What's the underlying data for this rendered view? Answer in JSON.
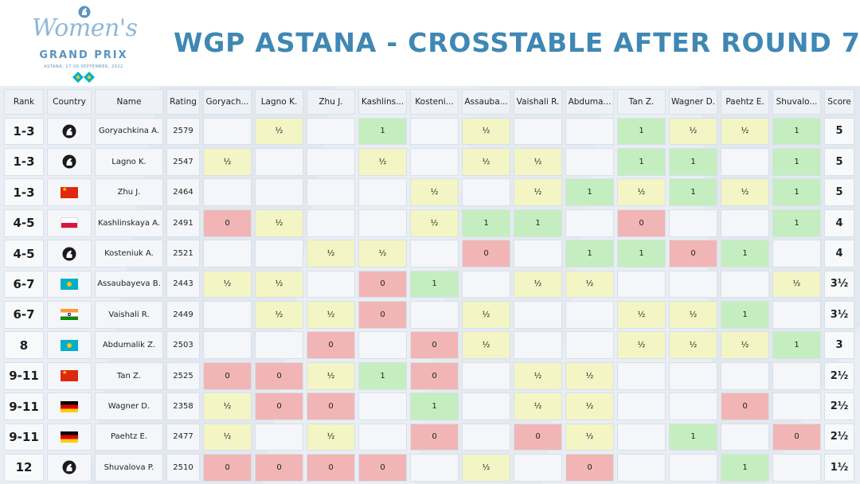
{
  "logo": {
    "script_text": "Women's",
    "grand_prix": "GRAND PRIX",
    "subtitle": "ASTANA, 17-30 SEPTEMBER, 2022"
  },
  "title": "WGP ASTANA - CROSSTABLE AFTER ROUND 7",
  "headers": {
    "rank": "Rank",
    "country": "Country",
    "name": "Name",
    "rating": "Rating",
    "opponents": [
      "Goryach...",
      "Lagno K.",
      "Zhu J.",
      "Kashlins...",
      "Kosteni...",
      "Assauba...",
      "Vaishali R.",
      "Abduma...",
      "Tan Z.",
      "Wagner D.",
      "Paehtz E.",
      "Shuvalo..."
    ],
    "score": "Score"
  },
  "colors": {
    "title": "#3f88b3",
    "win": "#c5eec0",
    "draw": "#f3f5c4",
    "loss": "#f2b5b5"
  },
  "rows": [
    {
      "rank": "1-3",
      "country": "fide",
      "name": "Goryachkina A.",
      "rating": "2579",
      "results": [
        "",
        "½",
        "",
        "1",
        "",
        "½",
        "",
        "",
        "1",
        "½",
        "½",
        "1"
      ],
      "score": "5"
    },
    {
      "rank": "1-3",
      "country": "fide",
      "name": "Lagno K.",
      "rating": "2547",
      "results": [
        "½",
        "",
        "",
        "½",
        "",
        "½",
        "½",
        "",
        "1",
        "1",
        "",
        "1"
      ],
      "score": "5"
    },
    {
      "rank": "1-3",
      "country": "china",
      "name": "Zhu J.",
      "rating": "2464",
      "results": [
        "",
        "",
        "",
        "",
        "½",
        "",
        "½",
        "1",
        "½",
        "1",
        "½",
        "1"
      ],
      "score": "5"
    },
    {
      "rank": "4-5",
      "country": "poland",
      "name": "Kashlinskaya A.",
      "rating": "2491",
      "results": [
        "0",
        "½",
        "",
        "",
        "½",
        "1",
        "1",
        "",
        "0",
        "",
        "",
        "1"
      ],
      "score": "4"
    },
    {
      "rank": "4-5",
      "country": "fide",
      "name": "Kosteniuk A.",
      "rating": "2521",
      "results": [
        "",
        "",
        "½",
        "½",
        "",
        "0",
        "",
        "1",
        "1",
        "0",
        "1",
        ""
      ],
      "score": "4"
    },
    {
      "rank": "6-7",
      "country": "kazakhstan",
      "name": "Assaubayeva B.",
      "rating": "2443",
      "results": [
        "½",
        "½",
        "",
        "0",
        "1",
        "",
        "½",
        "½",
        "",
        "",
        "",
        "½"
      ],
      "score": "3½"
    },
    {
      "rank": "6-7",
      "country": "india",
      "name": "Vaishali R.",
      "rating": "2449",
      "results": [
        "",
        "½",
        "½",
        "0",
        "",
        "½",
        "",
        "",
        "½",
        "½",
        "1",
        ""
      ],
      "score": "3½"
    },
    {
      "rank": "8",
      "country": "kazakhstan",
      "name": "Abdumalik Z.",
      "rating": "2503",
      "results": [
        "",
        "",
        "0",
        "",
        "0",
        "½",
        "",
        "",
        "½",
        "½",
        "½",
        "1"
      ],
      "score": "3"
    },
    {
      "rank": "9-11",
      "country": "china",
      "name": "Tan Z.",
      "rating": "2525",
      "results": [
        "0",
        "0",
        "½",
        "1",
        "0",
        "",
        "½",
        "½",
        "",
        "",
        "",
        ""
      ],
      "score": "2½"
    },
    {
      "rank": "9-11",
      "country": "germany",
      "name": "Wagner D.",
      "rating": "2358",
      "results": [
        "½",
        "0",
        "0",
        "",
        "1",
        "",
        "½",
        "½",
        "",
        "",
        "0",
        ""
      ],
      "score": "2½"
    },
    {
      "rank": "9-11",
      "country": "germany",
      "name": "Paehtz E.",
      "rating": "2477",
      "results": [
        "½",
        "",
        "½",
        "",
        "0",
        "",
        "0",
        "½",
        "",
        "1",
        "",
        "0"
      ],
      "score": "2½"
    },
    {
      "rank": "12",
      "country": "fide",
      "name": "Shuvalova P.",
      "rating": "2510",
      "results": [
        "0",
        "0",
        "0",
        "0",
        "",
        "½",
        "",
        "0",
        "",
        "",
        "1",
        ""
      ],
      "score": "1½"
    }
  ]
}
